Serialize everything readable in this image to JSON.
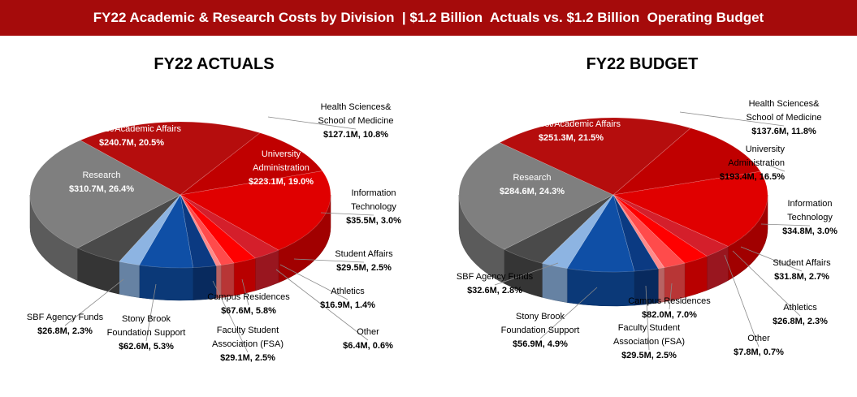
{
  "header": {
    "title": "FY22 Academic & Research Costs by Division  | $1.2 Billion  Actuals vs. $1.2 Billion  Operating Budget"
  },
  "chart_data": [
    {
      "type": "pie",
      "title": "FY22 ACTUALS",
      "units": "$M",
      "slices": [
        {
          "name": "Health Sciences& School of Medicine",
          "value": 127.1,
          "pct": 10.8,
          "label_lines": [
            "Health Sciences&",
            "School of Medicine"
          ],
          "value_label": "$127.1M, 10.8%",
          "color": "#c00000"
        },
        {
          "name": "University Administration",
          "value": 223.1,
          "pct": 19.0,
          "label_lines": [
            "University",
            "Administration"
          ],
          "value_label": "$223.1M, 19.0%",
          "color": "#e00000"
        },
        {
          "name": "Information Technology",
          "value": 35.5,
          "pct": 3.0,
          "label_lines": [
            "Information",
            "Technology"
          ],
          "value_label": "$35.5M, 3.0%",
          "color": "#d41f2b"
        },
        {
          "name": "Student Affairs",
          "value": 29.5,
          "pct": 2.5,
          "label_lines": [
            "Student Affairs"
          ],
          "value_label": "$29.5M, 2.5%",
          "color": "#ff0000"
        },
        {
          "name": "Athletics",
          "value": 16.9,
          "pct": 1.4,
          "label_lines": [
            "Athletics"
          ],
          "value_label": "$16.9M, 1.4%",
          "color": "#ff4b4b"
        },
        {
          "name": "Other",
          "value": 6.4,
          "pct": 0.6,
          "label_lines": [
            "Other"
          ],
          "value_label": "$6.4M, 0.6%",
          "color": "#ff8a8a"
        },
        {
          "name": "Faculty Student Association (FSA)",
          "value": 29.1,
          "pct": 2.5,
          "label_lines": [
            "Faculty Student",
            "Association (FSA)"
          ],
          "value_label": "$29.1M, 2.5%",
          "color": "#0b3a82"
        },
        {
          "name": "Campus Residences",
          "value": 67.6,
          "pct": 5.8,
          "label_lines": [
            "Campus Residences"
          ],
          "value_label": "$67.6M, 5.8%",
          "color": "#0f4fa6"
        },
        {
          "name": "SBF Agency Funds",
          "value": 26.8,
          "pct": 2.3,
          "label_lines": [
            "SBF Agency Funds"
          ],
          "value_label": "$26.8M, 2.3%",
          "color": "#8db4e2"
        },
        {
          "name": "Stony Brook Foundation Support",
          "value": 62.6,
          "pct": 5.3,
          "label_lines": [
            "Stony Brook",
            "Foundation Support"
          ],
          "value_label": "$62.6M, 5.3%",
          "color": "#4a4a4a"
        },
        {
          "name": "Research",
          "value": 310.7,
          "pct": 26.4,
          "label_lines": [
            "Research"
          ],
          "value_label": "$310.7M, 26.4%",
          "color": "#7f7f7f"
        },
        {
          "name": "Provost/Academic Affairs",
          "value": 240.7,
          "pct": 20.5,
          "label_lines": [
            "Provost/Academic Affairs"
          ],
          "value_label": "$240.7M, 20.5%",
          "color": "#b50d0d"
        }
      ]
    },
    {
      "type": "pie",
      "title": "FY22 BUDGET",
      "units": "$M",
      "slices": [
        {
          "name": "Health Sciences& School of Medicine",
          "value": 137.6,
          "pct": 11.8,
          "label_lines": [
            "Health Sciences&",
            "School of Medicine"
          ],
          "value_label": "$137.6M, 11.8%",
          "color": "#c00000"
        },
        {
          "name": "University Administration",
          "value": 193.4,
          "pct": 16.5,
          "label_lines": [
            "University",
            "Administration"
          ],
          "value_label": "$193.4M, 16.5%",
          "color": "#e00000"
        },
        {
          "name": "Information Technology",
          "value": 34.8,
          "pct": 3.0,
          "label_lines": [
            "Information",
            "Technology"
          ],
          "value_label": "$34.8M, 3.0%",
          "color": "#d41f2b"
        },
        {
          "name": "Student Affairs",
          "value": 31.8,
          "pct": 2.7,
          "label_lines": [
            "Student Affairs"
          ],
          "value_label": "$31.8M, 2.7%",
          "color": "#ff0000"
        },
        {
          "name": "Athletics",
          "value": 26.8,
          "pct": 2.3,
          "label_lines": [
            "Athletics"
          ],
          "value_label": "$26.8M, 2.3%",
          "color": "#ff4b4b"
        },
        {
          "name": "Other",
          "value": 7.8,
          "pct": 0.7,
          "label_lines": [
            "Other"
          ],
          "value_label": "$7.8M, 0.7%",
          "color": "#ff8a8a"
        },
        {
          "name": "Faculty Student Association (FSA)",
          "value": 29.5,
          "pct": 2.5,
          "label_lines": [
            "Faculty Student",
            "Association (FSA)"
          ],
          "value_label": "$29.5M, 2.5%",
          "color": "#0b3a82"
        },
        {
          "name": "Campus Residences",
          "value": 82.0,
          "pct": 7.0,
          "label_lines": [
            "Campus Residences"
          ],
          "value_label": "$82.0M, 7.0%",
          "color": "#0f4fa6"
        },
        {
          "name": "SBF Agency Funds",
          "value": 32.6,
          "pct": 2.8,
          "label_lines": [
            "SBF Agency Funds"
          ],
          "value_label": "$32.6M, 2.8%",
          "color": "#8db4e2"
        },
        {
          "name": "Stony Brook Foundation Support",
          "value": 56.9,
          "pct": 4.9,
          "label_lines": [
            "Stony Brook",
            "Foundation Support"
          ],
          "value_label": "$56.9M, 4.9%",
          "color": "#4a4a4a"
        },
        {
          "name": "Research",
          "value": 284.6,
          "pct": 24.3,
          "label_lines": [
            "Research"
          ],
          "value_label": "$284.6M, 24.3%",
          "color": "#7f7f7f"
        },
        {
          "name": "Provost/Academic Affairs",
          "value": 251.3,
          "pct": 21.5,
          "label_lines": [
            "Provost/Academic Affairs"
          ],
          "value_label": "$251.3M, 21.5%",
          "color": "#b50d0d"
        }
      ]
    }
  ]
}
